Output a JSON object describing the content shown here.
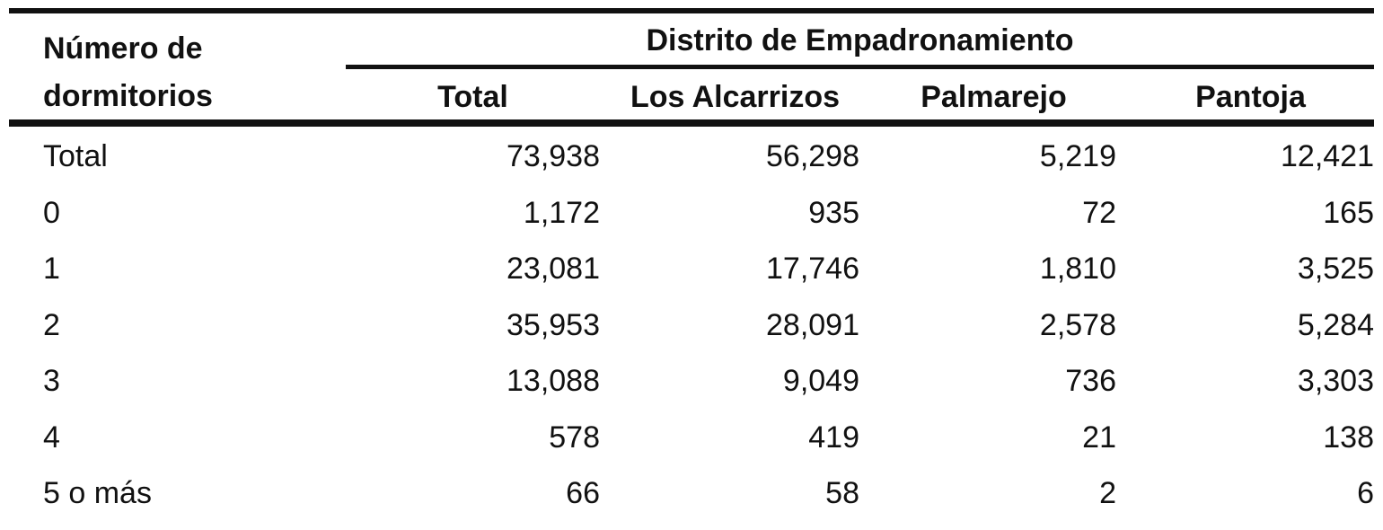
{
  "table": {
    "row_header": "Número de dormitorios",
    "group_header": "Distrito de Empadronamiento",
    "columns": [
      "Total",
      "Los Alcarrizos",
      "Palmarejo",
      "Pantoja"
    ],
    "rows": [
      [
        "Total",
        "73,938",
        "56,298",
        "5,219",
        "12,421"
      ],
      [
        "0",
        "1,172",
        "935",
        "72",
        "165"
      ],
      [
        "1",
        "23,081",
        "17,746",
        "1,810",
        "3,525"
      ],
      [
        "2",
        "35,953",
        "28,091",
        "2,578",
        "5,284"
      ],
      [
        "3",
        "13,088",
        "9,049",
        "736",
        "3,303"
      ],
      [
        "4",
        "578",
        "419",
        "21",
        "138"
      ],
      [
        "5 o más",
        "66",
        "58",
        "2",
        "6"
      ]
    ]
  }
}
